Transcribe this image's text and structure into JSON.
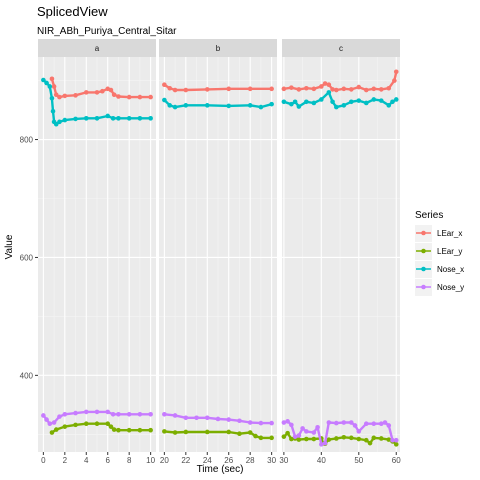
{
  "chart_data": {
    "type": "scatter",
    "title": "SplicedView",
    "subtitle": "NIR_ABh_Puriya_Central_Sitar",
    "xlabel": "Time (sec)",
    "ylabel": "Value",
    "legend_title": "Series",
    "legend_position": "right",
    "grid": true,
    "ylim": [
      270,
      940
    ],
    "y_ticks": [
      400,
      600,
      800
    ],
    "facets": [
      {
        "label": "a",
        "xlim": [
          -0.5,
          10.5
        ],
        "x_ticks": [
          0,
          2,
          4,
          6,
          8,
          10
        ]
      },
      {
        "label": "b",
        "xlim": [
          19.5,
          30.5
        ],
        "x_ticks": [
          20,
          22,
          24,
          26,
          28,
          30
        ]
      },
      {
        "label": "c",
        "xlim": [
          29.5,
          61.0
        ],
        "x_ticks": [
          30,
          40,
          50,
          60
        ]
      }
    ],
    "series": [
      {
        "name": "LEar_x",
        "color": "#F8766D",
        "facets": [
          {
            "x": [
              0.8,
              1.0,
              1.2,
              1.5,
              2.0,
              3.0,
              4.0,
              5.0,
              5.5,
              6.0,
              6.3,
              6.6,
              7.0,
              8.0,
              9.0,
              10.0
            ],
            "y": [
              903,
              890,
              876,
              872,
              874,
              875,
              880,
              880,
              882,
              886,
              884,
              876,
              873,
              872,
              872,
              872
            ]
          },
          {
            "x": [
              20.0,
              20.5,
              21.0,
              22.0,
              24.0,
              26.0,
              28.0,
              30.0
            ],
            "y": [
              893,
              887,
              884,
              884,
              885,
              886,
              886,
              886
            ]
          },
          {
            "x": [
              30.0,
              32.0,
              34.0,
              36.0,
              38.0,
              40.0,
              41.0,
              42.0,
              43.0,
              44.0,
              46.0,
              48.0,
              50.0,
              52.0,
              54.0,
              56.0,
              58.0,
              59.5,
              60.0
            ],
            "y": [
              886,
              888,
              885,
              887,
              886,
              890,
              895,
              893,
              885,
              884,
              886,
              885,
              889,
              884,
              886,
              885,
              887,
              900,
              915
            ]
          }
        ]
      },
      {
        "name": "LEar_y",
        "color": "#7CAE00",
        "facets": [
          {
            "x": [
              0.8,
              1.2,
              2.0,
              3.0,
              4.0,
              5.0,
              6.0,
              6.3,
              6.6,
              7.0,
              8.0,
              9.0,
              10.0
            ],
            "y": [
              303,
              308,
              313,
              316,
              318,
              318,
              318,
              313,
              308,
              307,
              307,
              307,
              307
            ]
          },
          {
            "x": [
              20.0,
              21.0,
              22.0,
              24.0,
              26.0,
              27.0,
              28.0,
              28.5,
              29.0,
              30.0
            ],
            "y": [
              305,
              303,
              304,
              304,
              304,
              301,
              303,
              297,
              294,
              294
            ]
          },
          {
            "x": [
              30.0,
              31.0,
              32.0,
              33.0,
              34.0,
              36.0,
              38.0,
              40.0,
              40.5,
              41.0,
              42.0,
              44.0,
              46.0,
              48.0,
              50.0,
              52.0,
              53.0,
              54.0,
              56.0,
              58.0,
              59.0,
              60.0
            ],
            "y": [
              296,
              302,
              292,
              293,
              291,
              292,
              292,
              293,
              285,
              284,
              291,
              293,
              295,
              294,
              292,
              290,
              285,
              294,
              293,
              291,
              288,
              283
            ]
          }
        ]
      },
      {
        "name": "Nose_x",
        "color": "#00BFC4",
        "facets": [
          {
            "x": [
              0.0,
              0.3,
              0.6,
              0.8,
              0.9,
              1.0,
              1.2,
              1.5,
              2.0,
              3.0,
              4.0,
              5.0,
              6.0,
              6.5,
              7.0,
              8.0,
              9.0,
              10.0
            ],
            "y": [
              901,
              896,
              890,
              870,
              848,
              830,
              826,
              830,
              833,
              835,
              836,
              836,
              840,
              836,
              836,
              836,
              836,
              836
            ]
          },
          {
            "x": [
              20.0,
              20.5,
              21.0,
              22.0,
              24.0,
              26.0,
              28.0,
              29.0,
              30.0
            ],
            "y": [
              867,
              858,
              855,
              858,
              858,
              857,
              858,
              855,
              860
            ]
          },
          {
            "x": [
              30.0,
              32.0,
              33.0,
              34.0,
              36.0,
              38.0,
              40.0,
              42.0,
              43.0,
              44.0,
              46.0,
              48.0,
              50.0,
              52.0,
              54.0,
              56.0,
              58.0,
              59.0,
              60.0
            ],
            "y": [
              864,
              860,
              864,
              856,
              864,
              862,
              868,
              880,
              864,
              855,
              858,
              864,
              866,
              862,
              868,
              866,
              858,
              864,
              868
            ]
          }
        ]
      },
      {
        "name": "Nose_y",
        "color": "#C77CFF",
        "facets": [
          {
            "x": [
              0.0,
              0.3,
              0.6,
              1.0,
              1.5,
              2.0,
              3.0,
              4.0,
              5.0,
              6.0,
              6.5,
              7.0,
              8.0,
              9.0,
              10.0
            ],
            "y": [
              332,
              325,
              318,
              320,
              330,
              334,
              336,
              338,
              338,
              338,
              334,
              334,
              334,
              334,
              334
            ]
          },
          {
            "x": [
              20.0,
              21.0,
              22.0,
              23.0,
              24.0,
              25.0,
              26.0,
              27.0,
              28.0,
              29.0,
              30.0
            ],
            "y": [
              334,
              332,
              328,
              328,
              328,
              326,
              325,
              323,
              320,
              319,
              319
            ]
          },
          {
            "x": [
              30.0,
              31.0,
              32.0,
              33.0,
              34.0,
              35.0,
              36.0,
              38.0,
              39.0,
              40.0,
              41.0,
              42.0,
              44.0,
              46.0,
              48.0,
              49.0,
              50.0,
              52.0,
              54.0,
              56.0,
              57.0,
              58.0,
              59.0,
              60.0
            ],
            "y": [
              320,
              322,
              316,
              296,
              298,
              310,
              305,
              303,
              312,
              283,
              285,
              320,
              319,
              320,
              320,
              315,
              305,
              318,
              318,
              318,
              320,
              315,
              290,
              290
            ]
          }
        ]
      }
    ]
  }
}
